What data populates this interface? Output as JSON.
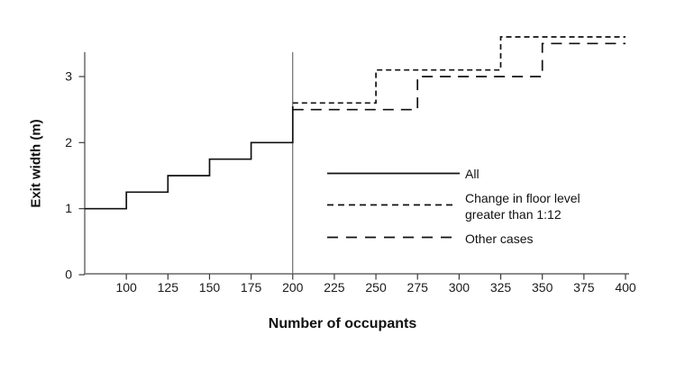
{
  "chart_data": {
    "type": "line",
    "subtype": "step",
    "title": "",
    "xlabel": "Number of occupants",
    "ylabel": "Exit width (m)",
    "xlim": [
      75,
      400
    ],
    "ylim": [
      0,
      3.37
    ],
    "xticks": [
      100,
      125,
      150,
      175,
      200,
      225,
      250,
      275,
      300,
      325,
      350,
      375,
      400
    ],
    "yticks": [
      0,
      1,
      2,
      3
    ],
    "reference_line_x": 200,
    "grid": false,
    "legend_position": "inside-right-center",
    "axis_color": "#7d7d7d",
    "tick_color": "#3a3a3a",
    "reference_line_color": "#4c4c4c",
    "line_color": "#111111",
    "series": [
      {
        "name": "All",
        "style": "solid",
        "points": [
          [
            75,
            1.0
          ],
          [
            100,
            1.0
          ],
          [
            100,
            1.25
          ],
          [
            125,
            1.25
          ],
          [
            125,
            1.5
          ],
          [
            150,
            1.5
          ],
          [
            150,
            1.75
          ],
          [
            175,
            1.75
          ],
          [
            175,
            2.0
          ],
          [
            200,
            2.0
          ],
          [
            200,
            2.55
          ]
        ]
      },
      {
        "name": "Change in floor level greater than 1:12",
        "style": "short-dash",
        "points": [
          [
            200,
            2.6
          ],
          [
            250,
            2.6
          ],
          [
            250,
            3.1
          ],
          [
            325,
            3.1
          ],
          [
            325,
            3.6
          ],
          [
            400,
            3.6
          ]
        ]
      },
      {
        "name": "Other cases",
        "style": "long-dash",
        "points": [
          [
            200,
            2.5
          ],
          [
            275,
            2.5
          ],
          [
            275,
            3.0
          ],
          [
            350,
            3.0
          ],
          [
            350,
            3.5
          ],
          [
            400,
            3.5
          ]
        ]
      }
    ],
    "legend": [
      {
        "label": "All",
        "style": "solid"
      },
      {
        "label": "Change in floor level greater than 1:12",
        "style": "short-dash"
      },
      {
        "label": "Other cases",
        "style": "long-dash"
      }
    ]
  }
}
